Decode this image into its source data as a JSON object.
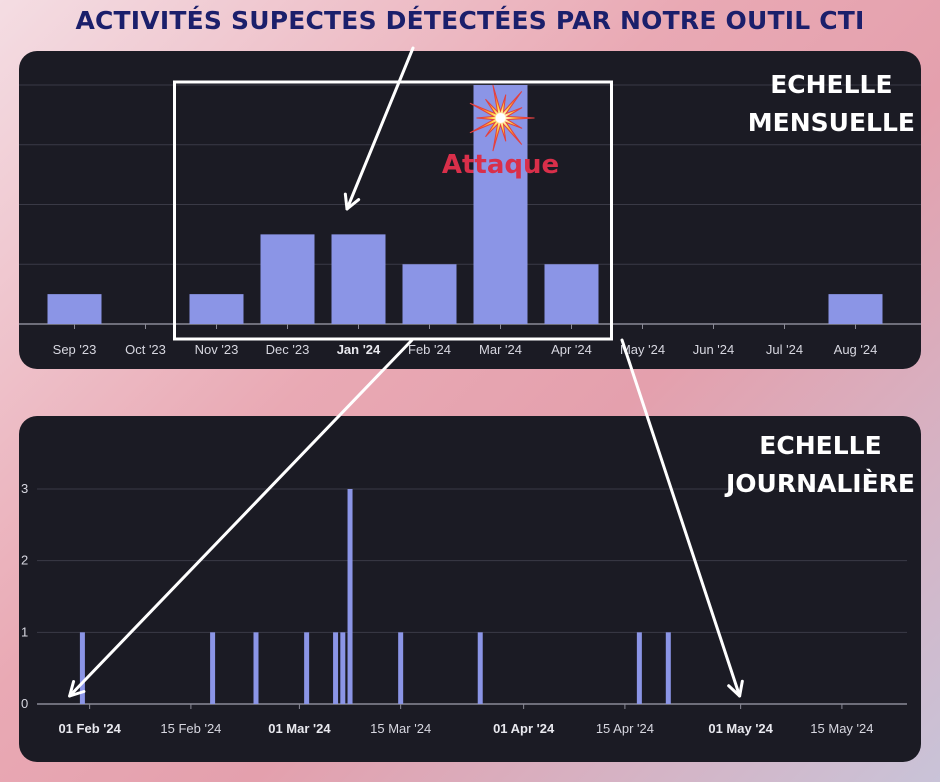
{
  "title": "ACTIVITÉS SUPECTES DÉTECTÉES PAR NOTRE OUTIL CTI",
  "colors": {
    "bar": "#8b95e6",
    "panel_bg": "#1b1b24",
    "title": "#1b1f6b",
    "attack": "#d92f4a",
    "highlight": "#ffffff"
  },
  "monthly_label": [
    "ECHELLE",
    "MENSUELLE"
  ],
  "daily_label": [
    "ECHELLE",
    "JOURNALIÈRE"
  ],
  "annotation": {
    "text": "Attaque",
    "icon": "explosion-icon",
    "month": "Mar '24"
  },
  "highlight_range": [
    "Nov '23",
    "Apr '24"
  ],
  "chart_data": [
    {
      "type": "bar",
      "categories": [
        "Sep '23",
        "Oct '23",
        "Nov '23",
        "Dec '23",
        "Jan '24",
        "Feb '24",
        "Mar '24",
        "Apr '24",
        "May '24",
        "Jun '24",
        "Jul '24",
        "Aug '24"
      ],
      "values": [
        1,
        0,
        1,
        3,
        3,
        2,
        8,
        2,
        0,
        0,
        0,
        1
      ],
      "bold_categories": [
        "Jan '24"
      ],
      "ylim": [
        0,
        8
      ],
      "grid": true
    },
    {
      "type": "bar",
      "x_ticks": [
        "01 Feb '24",
        "15 Feb '24",
        "01 Mar '24",
        "15 Mar '24",
        "01 Apr '24",
        "15 Apr '24",
        "01 May '24",
        "15 May '24"
      ],
      "bold_ticks": [
        "01 Feb '24",
        "01 Mar '24",
        "01 Apr '24",
        "01 May '24"
      ],
      "y_ticks": [
        "0",
        "1",
        "2",
        "3"
      ],
      "ylim": [
        0,
        3
      ],
      "x_range": [
        "2024-01-25",
        "2024-05-24"
      ],
      "points": [
        {
          "date": "2024-01-31",
          "value": 1
        },
        {
          "date": "2024-02-18",
          "value": 1
        },
        {
          "date": "2024-02-24",
          "value": 1
        },
        {
          "date": "2024-03-02",
          "value": 1
        },
        {
          "date": "2024-03-06",
          "value": 1
        },
        {
          "date": "2024-03-07",
          "value": 1
        },
        {
          "date": "2024-03-08",
          "value": 3
        },
        {
          "date": "2024-03-15",
          "value": 1
        },
        {
          "date": "2024-03-26",
          "value": 1
        },
        {
          "date": "2024-04-17",
          "value": 1
        },
        {
          "date": "2024-04-21",
          "value": 1
        }
      ],
      "grid": true
    }
  ]
}
